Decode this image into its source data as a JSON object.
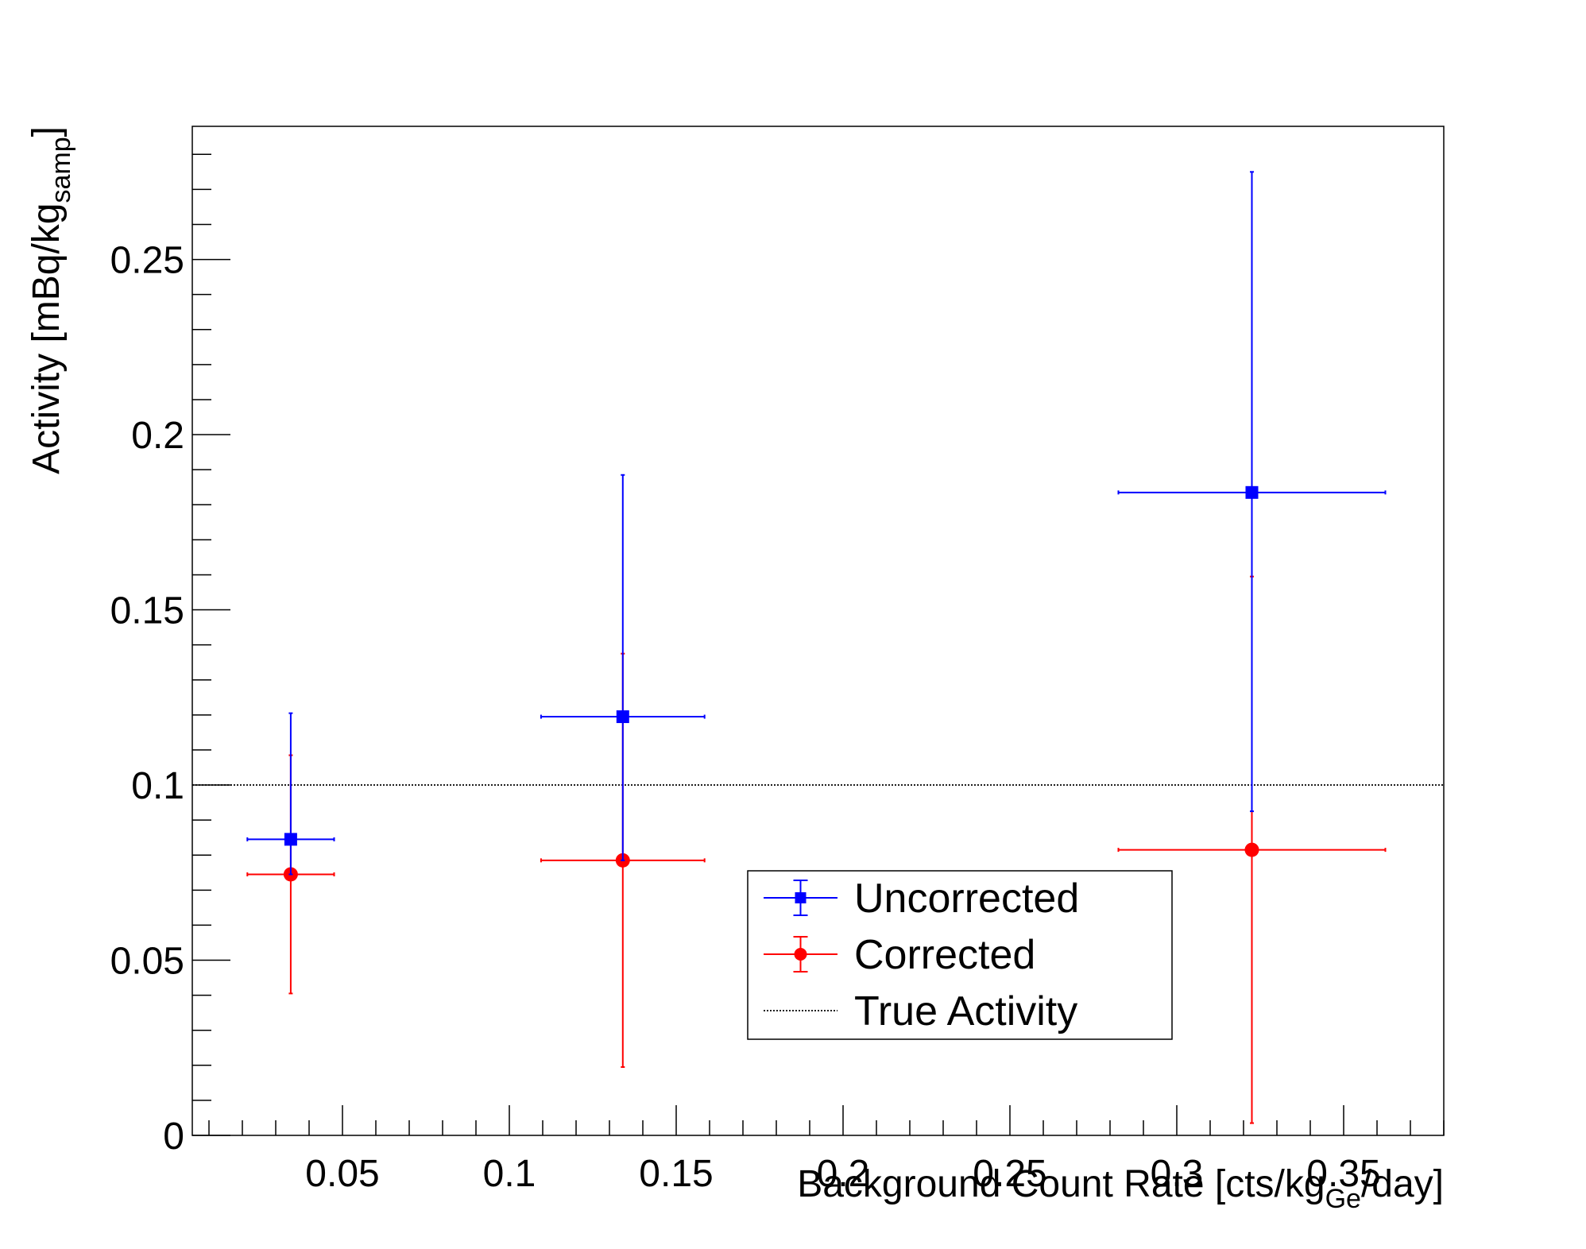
{
  "chart_data": {
    "type": "scatter",
    "xlabel": "Background Count Rate [cts/kg",
    "xlabel_sub": "Ge",
    "xlabel_tail": "/day]",
    "ylabel": "Activity [mBq/kg",
    "ylabel_sub": "samp",
    "ylabel_tail": "]",
    "xlim": [
      0.005,
      0.38
    ],
    "ylim": [
      0,
      0.288
    ],
    "x_ticks": [
      0.05,
      0.1,
      0.15,
      0.2,
      0.25,
      0.3,
      0.35
    ],
    "x_tick_labels": [
      "0.05",
      "0.1",
      "0.15",
      "0.2",
      "0.25",
      "0.3",
      "0.35"
    ],
    "y_ticks": [
      0,
      0.05,
      0.1,
      0.15,
      0.2,
      0.25
    ],
    "y_tick_labels": [
      "0",
      "0.05",
      "0.1",
      "0.15",
      "0.2",
      "0.25"
    ],
    "grid": false,
    "legend_position": "lower-center",
    "series": [
      {
        "name": "Uncorrected",
        "color": "#0000ff",
        "marker": "square",
        "points": [
          {
            "x": 0.0345,
            "y": 0.0845,
            "x_low": 0.0215,
            "x_high": 0.0475,
            "y_low": 0.0745,
            "y_high": 0.1205
          },
          {
            "x": 0.134,
            "y": 0.1195,
            "x_low": 0.1095,
            "x_high": 0.1585,
            "y_low": 0.0785,
            "y_high": 0.1885
          },
          {
            "x": 0.3225,
            "y": 0.1835,
            "x_low": 0.2825,
            "x_high": 0.3625,
            "y_low": 0.0925,
            "y_high": 0.275
          }
        ]
      },
      {
        "name": "Corrected",
        "color": "#ff0000",
        "marker": "circle",
        "points": [
          {
            "x": 0.0345,
            "y": 0.0745,
            "x_low": 0.0215,
            "x_high": 0.0475,
            "y_low": 0.0405,
            "y_high": 0.1085
          },
          {
            "x": 0.134,
            "y": 0.0785,
            "x_low": 0.1095,
            "x_high": 0.1585,
            "y_low": 0.0195,
            "y_high": 0.1375
          },
          {
            "x": 0.3225,
            "y": 0.0815,
            "x_low": 0.2825,
            "x_high": 0.3625,
            "y_low": 0.0035,
            "y_high": 0.1595
          }
        ]
      }
    ],
    "reference_line": {
      "name": "True Activity",
      "y": 0.1,
      "color": "#000000",
      "style": "dotted"
    }
  }
}
